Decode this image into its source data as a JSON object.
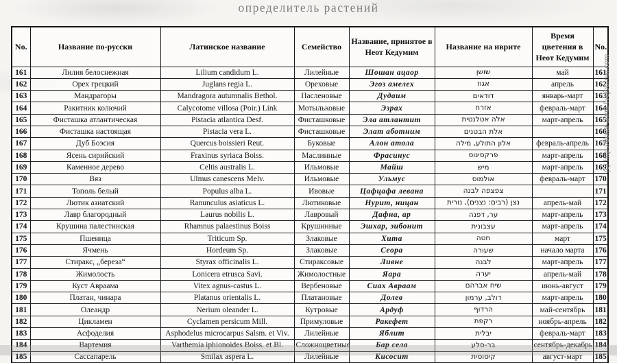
{
  "page": {
    "title": "определитель растений",
    "watermark": "(c) http://dona-anna.livejournal.com"
  },
  "colors": {
    "table_border": "#1c1c1c",
    "title_gray": "#7b7b7b",
    "watermark_gray": "#8f8f8f",
    "scan_band_gray": "#969696",
    "page_background": "#f5f4f1"
  },
  "table": {
    "headers": [
      "No.",
      "Название по-русски",
      "Латинское название",
      "Семейство",
      "Название, принятое в Неот Кедумим",
      "Название на иврите",
      "Время цветения в Неот Кедумим",
      "No."
    ],
    "rows": [
      {
        "no": "161",
        "russian": "Лилия белоснежная",
        "latin": "Lilium candidum L.",
        "family": "Лилейные",
        "neot": "Шошан ацаор",
        "hebrew": "שושן",
        "bloom": "май"
      },
      {
        "no": "162",
        "russian": "Орех грецкий",
        "latin": "Juglans regia L.",
        "family": "Ореховые",
        "neot": "Эгоз амелех",
        "hebrew": "אגוז",
        "bloom": "апрель"
      },
      {
        "no": "163",
        "russian": "Мандрагоры",
        "latin": "Mandragora autumnalis Bethol.",
        "family": "Пасленовые",
        "neot": "Дудаим",
        "hebrew": "דודאים",
        "bloom": "январь-март"
      },
      {
        "no": "164",
        "russian": "Ракитник колючий",
        "latin": "Calycotome villosa (Poir.) Link",
        "family": "Мотыльковые",
        "neot": "Эзрах",
        "hebrew": "אזרח",
        "bloom": "февраль-март"
      },
      {
        "no": "165",
        "russian": "Фисташка атлантическая",
        "latin": "Pistacia atlantica Desf.",
        "family": "Фисташковые",
        "neot": "Эла атлантит",
        "hebrew": "אלה אטלנטית",
        "bloom": "март-апрель"
      },
      {
        "no": "166",
        "russian": "Фисташка настоящая",
        "latin": "Pistacia vera L.",
        "family": "Фисташковые",
        "neot": "Элат аботним",
        "hebrew": "אלת הבטנים",
        "bloom": ""
      },
      {
        "no": "167",
        "russian": "Дуб  Боэсия",
        "latin": "Quercus boissieri Reut.",
        "family": "Буковые",
        "neot": "Алон атола",
        "hebrew": "אלון התולע,  מילה",
        "bloom": "февраль-апрель"
      },
      {
        "no": "168",
        "russian": "Ясень сирийский",
        "latin": "Fraxinus syriaca Boiss.",
        "family": "Маслинные",
        "neot": "Фрасинус",
        "hebrew": "פרקסינוס",
        "bloom": "март-апрель"
      },
      {
        "no": "169",
        "russian": "Каменное дерево",
        "latin": "Celtis australis L.",
        "family": "Ильмовые",
        "neot": "Майш",
        "hebrew": "מיש",
        "bloom": "март-апрель"
      },
      {
        "no": "170",
        "russian": "Вяз",
        "latin": "Ulmus canescens Melv.",
        "family": "Ильмовые",
        "neot": "Ульмус",
        "hebrew": "אולמוס",
        "bloom": "февраль-март"
      },
      {
        "no": "171",
        "russian": "Тополь белый",
        "latin": "Populus alba L.",
        "family": "Ивовые",
        "neot": "Цафцафа левана",
        "hebrew": "צפצפה לבנה",
        "bloom": ""
      },
      {
        "no": "172",
        "russian": "Лютик азиатский",
        "latin": "Ranunculus asiaticus L.",
        "family": "Лютиковые",
        "neot": "Нурит, ницан",
        "hebrew": "נצן (רבים: נצנים), נורית",
        "bloom": "апрель-май"
      },
      {
        "no": "173",
        "russian": "Лавр благородный",
        "latin": "Laurus nobilis L.",
        "family": "Лавровый",
        "neot": "Дафна, ар",
        "hebrew": "ער, דפנה",
        "bloom": "март-апрель"
      },
      {
        "no": "174",
        "russian": "Крушина палестинская",
        "latin": "Rhamnus palaestinus Boiss",
        "family": "Крушинные",
        "neot": "Эшхар, эибонит",
        "hebrew": "עצבונית",
        "bloom": "март-апрель"
      },
      {
        "no": "175",
        "russian": "Пшеница",
        "latin": "Triticum Sp.",
        "family": "Злаковые",
        "neot": "Хита",
        "hebrew": "חטה",
        "bloom": "март"
      },
      {
        "no": "176",
        "russian": "Ячмень",
        "latin": "Hordeum Sp.",
        "family": "Злаковые",
        "neot": "Сеора",
        "hebrew": "שעורה",
        "bloom": "начало марта"
      },
      {
        "no": "177",
        "russian": "Стиракс, „береза“",
        "latin": "Styrax officinalis L.",
        "family": "Стираксовые",
        "neot": "Ливне",
        "hebrew": "לבנה",
        "bloom": "март-апрель"
      },
      {
        "no": "178",
        "russian": "Жимолость",
        "latin": "Lonicera etrusca Savi.",
        "family": "Жимолостные",
        "neot": "Яара",
        "hebrew": "יערה",
        "bloom": "апрель-май"
      },
      {
        "no": "179",
        "russian": "Куст Авраама",
        "latin": "Vitex agnus-castus L.",
        "family": "Вербеновые",
        "neot": "Сиах Авраам",
        "hebrew": "שיח אברהם",
        "bloom": "июнь-август"
      },
      {
        "no": "180",
        "russian": "Платан, чинара",
        "latin": "Platanus orientalis L.",
        "family": "Платановые",
        "neot": "Долев",
        "hebrew": "דולב, ערמון",
        "bloom": "март-апрель"
      },
      {
        "no": "181",
        "russian": "Олеандр",
        "latin": "Nerium oleander L.",
        "family": "Кутровые",
        "neot": "Ардуф",
        "hebrew": "הרדוף",
        "bloom": "май-сентябрь"
      },
      {
        "no": "182",
        "russian": "Цикламен",
        "latin": "Cyclamen persicum Mill.",
        "family": "Примуловые",
        "neot": "Ракефет",
        "hebrew": "רקפת",
        "bloom": "ноябрь-апрель"
      },
      {
        "no": "183",
        "russian": "Асфоделия",
        "latin": "Asphodelus microcarpus Salsm. et Viv.",
        "family": "Лилейные",
        "neot": "Яблит",
        "hebrew": "יבלית",
        "bloom": "февраль-март"
      },
      {
        "no": "184",
        "russian": "Вартемия",
        "latin": "Varthemia iphionoides Boiss. et Bl.",
        "family": "Сложноцветные",
        "neot": "Бар села",
        "hebrew": "בר-סלע",
        "bloom": "сентябрь-декабрь"
      },
      {
        "no": "185",
        "russian": "Сассапарель",
        "latin": "Smilax aspera L.",
        "family": "Лилейные",
        "neot": "Кисосит",
        "hebrew": "קיסוסית",
        "bloom": "август-март"
      }
    ]
  }
}
